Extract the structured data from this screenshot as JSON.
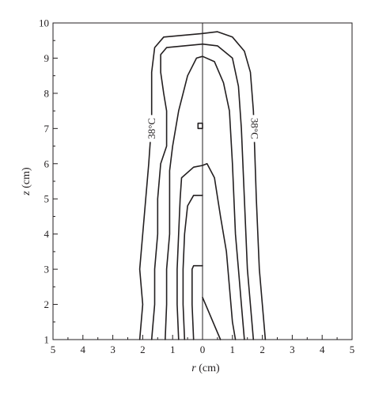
{
  "chart_data": {
    "type": "line",
    "title": "",
    "xlabel": {
      "var": "r",
      "unit": " (cm)"
    },
    "ylabel": {
      "var": "z",
      "unit": " (cm)"
    },
    "xlim": [
      -5,
      5
    ],
    "ylim": [
      1,
      10
    ],
    "x_tick_values": [
      -5,
      -4,
      -3,
      -2,
      -1,
      0,
      1,
      2,
      3,
      4,
      5
    ],
    "x_tick_labels": [
      "5",
      "4",
      "3",
      "2",
      "1",
      "0",
      "1",
      "2",
      "3",
      "4",
      "5"
    ],
    "y_ticks": [
      1,
      2,
      3,
      4,
      5,
      6,
      7,
      8,
      9,
      10
    ],
    "grid": false,
    "annotations": [
      {
        "text": "38°C",
        "x": -1.7,
        "y": 7.0,
        "rotate": -90
      },
      {
        "text": "38°C",
        "x": 1.75,
        "y": 7.0,
        "rotate": 90
      }
    ],
    "series": [
      {
        "points": [
          [
            -2.1,
            1
          ],
          [
            -2.0,
            2
          ],
          [
            -2.1,
            3
          ],
          [
            -2.0,
            4
          ],
          [
            -1.9,
            5
          ],
          [
            -1.8,
            6
          ],
          [
            -1.7,
            7.2
          ],
          [
            -1.7,
            8.6
          ],
          [
            -1.6,
            9.3
          ],
          [
            -1.3,
            9.6
          ],
          [
            0.0,
            9.7
          ],
          [
            0.5,
            9.75
          ],
          [
            1.0,
            9.6
          ],
          [
            1.4,
            9.2
          ],
          [
            1.6,
            8.6
          ],
          [
            1.7,
            7.5
          ],
          [
            1.8,
            5
          ],
          [
            1.9,
            3
          ],
          [
            2.0,
            2
          ],
          [
            2.1,
            1
          ]
        ]
      },
      {
        "points": [
          [
            -1.7,
            1
          ],
          [
            -1.6,
            2
          ],
          [
            -1.6,
            3
          ],
          [
            -1.5,
            4
          ],
          [
            -1.5,
            5
          ],
          [
            -1.4,
            6
          ],
          [
            -1.2,
            6.5
          ],
          [
            -1.2,
            7.5
          ],
          [
            -1.3,
            8.0
          ],
          [
            -1.4,
            8.6
          ],
          [
            -1.4,
            9.1
          ],
          [
            -1.2,
            9.3
          ],
          [
            0,
            9.4
          ],
          [
            0.5,
            9.35
          ],
          [
            1.0,
            9.0
          ],
          [
            1.2,
            8.2
          ],
          [
            1.3,
            7
          ],
          [
            1.4,
            5
          ],
          [
            1.5,
            3
          ],
          [
            1.6,
            2
          ],
          [
            1.7,
            1
          ]
        ]
      },
      {
        "points": [
          [
            -1.25,
            1
          ],
          [
            -1.2,
            2
          ],
          [
            -1.2,
            3
          ],
          [
            -1.1,
            4
          ],
          [
            -1.1,
            5
          ],
          [
            -1.1,
            5.8
          ],
          [
            -1.0,
            6.5
          ],
          [
            -0.8,
            7.5
          ],
          [
            -0.5,
            8.5
          ],
          [
            -0.2,
            9.0
          ],
          [
            0,
            9.05
          ],
          [
            0.4,
            8.9
          ],
          [
            0.7,
            8.3
          ],
          [
            0.9,
            7.5
          ],
          [
            1.0,
            6
          ],
          [
            1.1,
            4
          ],
          [
            1.2,
            3
          ],
          [
            1.3,
            2
          ],
          [
            1.4,
            1
          ]
        ]
      },
      {
        "points": [
          [
            -0.8,
            1
          ],
          [
            -0.85,
            2
          ],
          [
            -0.85,
            3
          ],
          [
            -0.8,
            4
          ],
          [
            -0.75,
            5
          ],
          [
            -0.7,
            5.6
          ],
          [
            -0.3,
            5.9
          ],
          [
            0,
            5.95
          ],
          [
            0.15,
            6.0
          ],
          [
            0.4,
            5.6
          ],
          [
            0.6,
            4.5
          ],
          [
            0.8,
            3.5
          ],
          [
            0.9,
            2.5
          ],
          [
            1.0,
            1.5
          ],
          [
            1.1,
            1
          ]
        ]
      },
      {
        "points": [
          [
            -0.6,
            1
          ],
          [
            -0.65,
            2
          ],
          [
            -0.65,
            3
          ],
          [
            -0.6,
            4
          ],
          [
            -0.5,
            4.8
          ],
          [
            -0.3,
            5.1
          ],
          [
            0,
            5.1
          ]
        ]
      },
      {
        "points": [
          [
            -0.3,
            1
          ],
          [
            -0.35,
            2
          ],
          [
            -0.35,
            3
          ],
          [
            -0.3,
            3.1
          ],
          [
            0,
            3.1
          ]
        ]
      },
      {
        "points": [
          [
            0,
            2.2
          ],
          [
            0.2,
            1.8
          ],
          [
            0.4,
            1.4
          ],
          [
            0.6,
            1
          ]
        ]
      },
      {
        "points": [
          [
            -0.15,
            7.0
          ],
          [
            -0.15,
            7.15
          ],
          [
            0.0,
            7.15
          ],
          [
            0.0,
            7.0
          ],
          [
            -0.15,
            7.0
          ]
        ]
      }
    ]
  }
}
